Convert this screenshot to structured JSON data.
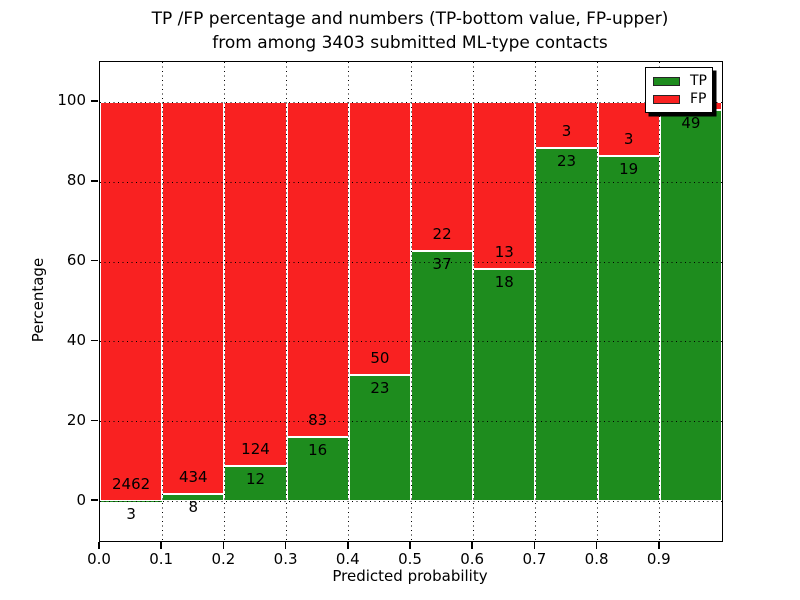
{
  "figure": {
    "background": "#ffffff"
  },
  "colors": {
    "tp": "#1e8c1e",
    "fp": "#f92121",
    "bar_edge": "#ffffff",
    "grid": "#000000",
    "text": "#000000"
  },
  "chart_data": {
    "type": "bar",
    "stacked": true,
    "normalized_to_percent": true,
    "title": "TP /FP percentage and numbers (TP-bottom value, FP-upper) from among 3403 submitted ML-type contacts",
    "title_lines": [
      "TP /FP percentage and numbers (TP-bottom value, FP-upper)",
      "from among 3403 submitted ML-type contacts"
    ],
    "xlabel": "Predicted probability",
    "ylabel": "Percentage",
    "total_submitted_contacts": 3403,
    "categories": [
      "0.0-0.1",
      "0.1-0.2",
      "0.2-0.3",
      "0.3-0.4",
      "0.4-0.5",
      "0.5-0.6",
      "0.6-0.7",
      "0.7-0.8",
      "0.8-0.9",
      "0.9-1.0"
    ],
    "series": [
      {
        "name": "TP",
        "color": "#1e8c1e",
        "values": [
          3,
          8,
          12,
          16,
          23,
          37,
          18,
          23,
          19,
          49
        ]
      },
      {
        "name": "FP",
        "color": "#f92121",
        "values": [
          2462,
          434,
          124,
          83,
          50,
          22,
          13,
          3,
          3,
          1
        ]
      }
    ],
    "tp_percent_per_bin": [
      0.12,
      1.81,
      8.82,
      16.16,
      31.51,
      62.71,
      58.06,
      88.46,
      86.36,
      98.0
    ],
    "xlim": [
      0.0,
      1.0
    ],
    "ylim": [
      -10,
      110
    ],
    "xticks": [
      "0.0",
      "0.1",
      "0.2",
      "0.3",
      "0.4",
      "0.5",
      "0.6",
      "0.7",
      "0.8",
      "0.9"
    ],
    "yticks": [
      0,
      20,
      40,
      60,
      80,
      100
    ],
    "grid": true,
    "grid_style": "dotted",
    "legend": {
      "location": "upper right",
      "items": [
        {
          "label": "TP",
          "color": "#1e8c1e"
        },
        {
          "label": "FP",
          "color": "#f92121"
        }
      ]
    }
  }
}
